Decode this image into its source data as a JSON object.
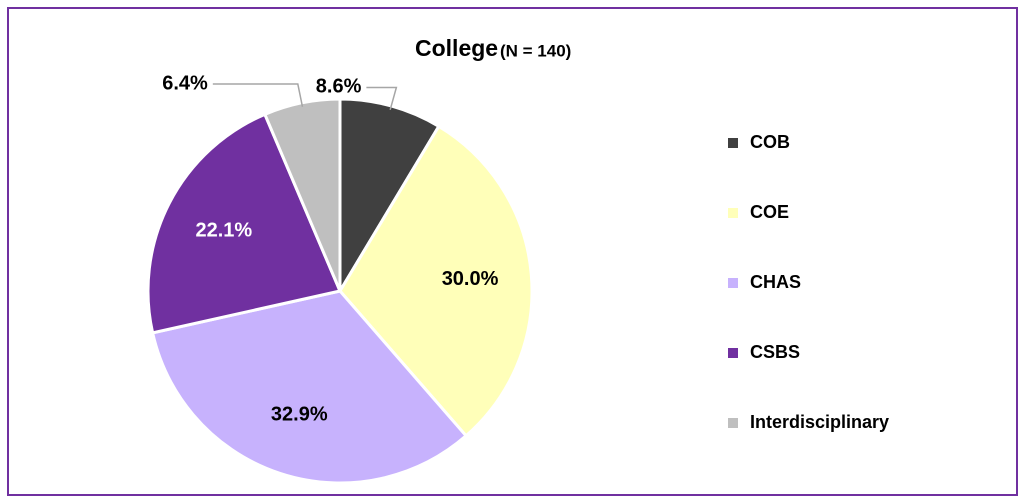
{
  "chart_data": {
    "type": "pie",
    "title": "College",
    "subtitle": "(N = 140)",
    "categories": [
      "COB",
      "COE",
      "CHAS",
      "CSBS",
      "Interdisciplinary"
    ],
    "values": [
      8.6,
      30.0,
      32.9,
      22.1,
      6.4
    ],
    "value_labels": [
      "8.6%",
      "30.0%",
      "32.9%",
      "22.1%",
      "6.4%"
    ],
    "colors": [
      "#404040",
      "#ffffb9",
      "#c7b2fd",
      "#7030a0",
      "#bfbfbf"
    ],
    "legend": "right"
  }
}
